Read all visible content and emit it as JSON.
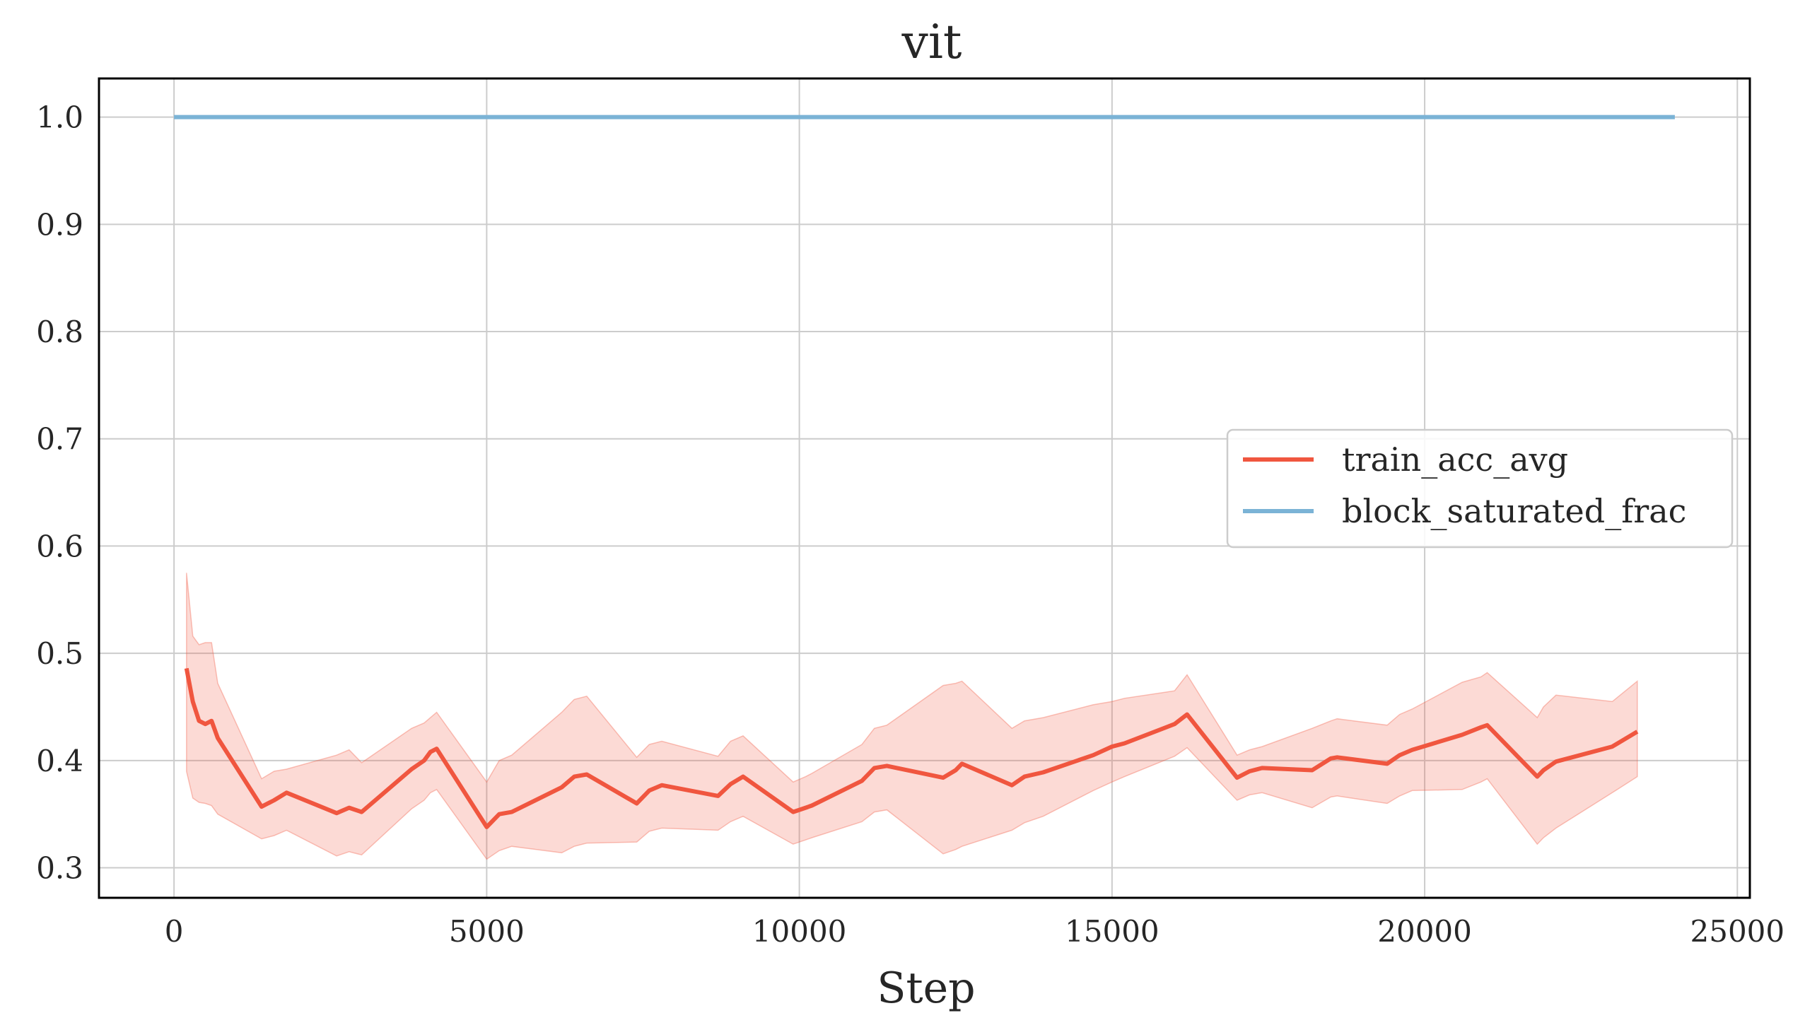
{
  "chart_data": {
    "type": "line",
    "title": "vit",
    "xlabel": "Step",
    "ylabel": "",
    "xlim": [
      -1200,
      25200
    ],
    "ylim": [
      0.272,
      1.036
    ],
    "grid": true,
    "legend_position": "center-right",
    "x_ticks": [
      0,
      5000,
      10000,
      15000,
      20000,
      25000
    ],
    "x_tick_labels": [
      "0",
      "5000",
      "10000",
      "15000",
      "20000",
      "25000"
    ],
    "y_ticks": [
      0.3,
      0.4,
      0.5,
      0.6,
      0.7,
      0.8,
      0.9,
      1.0
    ],
    "y_tick_labels": [
      "0.3",
      "0.4",
      "0.5",
      "0.6",
      "0.7",
      "0.8",
      "0.9",
      "1.0"
    ],
    "series": [
      {
        "name": "train_acc_avg",
        "color": "#F0563F",
        "band_color": "#F0563F",
        "band_opacity": 0.22,
        "x": [
          200,
          300,
          400,
          500,
          600,
          700,
          1400,
          1600,
          1800,
          2600,
          2800,
          3000,
          3800,
          4000,
          4100,
          4200,
          5000,
          5200,
          5400,
          6200,
          6400,
          6600,
          7400,
          7600,
          7800,
          8700,
          8900,
          9100,
          9900,
          10100,
          10200,
          11000,
          11200,
          11400,
          12300,
          12500,
          12600,
          13400,
          13600,
          13900,
          14700,
          15000,
          15200,
          16000,
          16200,
          17000,
          17200,
          17400,
          18200,
          18500,
          18600,
          19400,
          19600,
          19800,
          20600,
          20900,
          21000,
          21800,
          21900,
          22100,
          23000,
          23400
        ],
        "values": [
          0.486,
          0.455,
          0.437,
          0.434,
          0.437,
          0.421,
          0.357,
          0.363,
          0.37,
          0.351,
          0.356,
          0.352,
          0.392,
          0.4,
          0.408,
          0.411,
          0.338,
          0.35,
          0.352,
          0.375,
          0.385,
          0.387,
          0.36,
          0.372,
          0.377,
          0.367,
          0.378,
          0.385,
          0.352,
          0.356,
          0.358,
          0.381,
          0.393,
          0.395,
          0.384,
          0.391,
          0.397,
          0.377,
          0.385,
          0.389,
          0.405,
          0.413,
          0.416,
          0.434,
          0.443,
          0.384,
          0.39,
          0.393,
          0.391,
          0.402,
          0.403,
          0.397,
          0.405,
          0.41,
          0.424,
          0.431,
          0.433,
          0.385,
          0.391,
          0.399,
          0.413,
          0.427
        ],
        "band_lower": [
          0.39,
          0.365,
          0.361,
          0.36,
          0.358,
          0.35,
          0.327,
          0.33,
          0.335,
          0.311,
          0.315,
          0.312,
          0.355,
          0.363,
          0.37,
          0.373,
          0.308,
          0.316,
          0.32,
          0.314,
          0.32,
          0.323,
          0.324,
          0.334,
          0.337,
          0.335,
          0.343,
          0.348,
          0.322,
          0.326,
          0.328,
          0.343,
          0.352,
          0.354,
          0.313,
          0.317,
          0.32,
          0.335,
          0.342,
          0.348,
          0.372,
          0.38,
          0.385,
          0.404,
          0.412,
          0.363,
          0.368,
          0.37,
          0.356,
          0.366,
          0.367,
          0.36,
          0.367,
          0.372,
          0.373,
          0.38,
          0.383,
          0.322,
          0.328,
          0.337,
          0.37,
          0.385
        ],
        "band_upper": [
          0.575,
          0.516,
          0.508,
          0.51,
          0.51,
          0.472,
          0.383,
          0.39,
          0.392,
          0.405,
          0.41,
          0.398,
          0.43,
          0.435,
          0.44,
          0.445,
          0.38,
          0.4,
          0.405,
          0.445,
          0.457,
          0.46,
          0.403,
          0.415,
          0.418,
          0.404,
          0.418,
          0.423,
          0.38,
          0.385,
          0.388,
          0.415,
          0.43,
          0.433,
          0.47,
          0.472,
          0.474,
          0.43,
          0.437,
          0.44,
          0.452,
          0.455,
          0.458,
          0.465,
          0.48,
          0.405,
          0.41,
          0.413,
          0.43,
          0.437,
          0.439,
          0.433,
          0.443,
          0.448,
          0.473,
          0.478,
          0.482,
          0.44,
          0.45,
          0.461,
          0.455,
          0.474
        ]
      },
      {
        "name": "block_saturated_frac",
        "color": "#7BB3D6",
        "x": [
          0,
          24000
        ],
        "values": [
          1.0,
          1.0
        ]
      }
    ]
  }
}
